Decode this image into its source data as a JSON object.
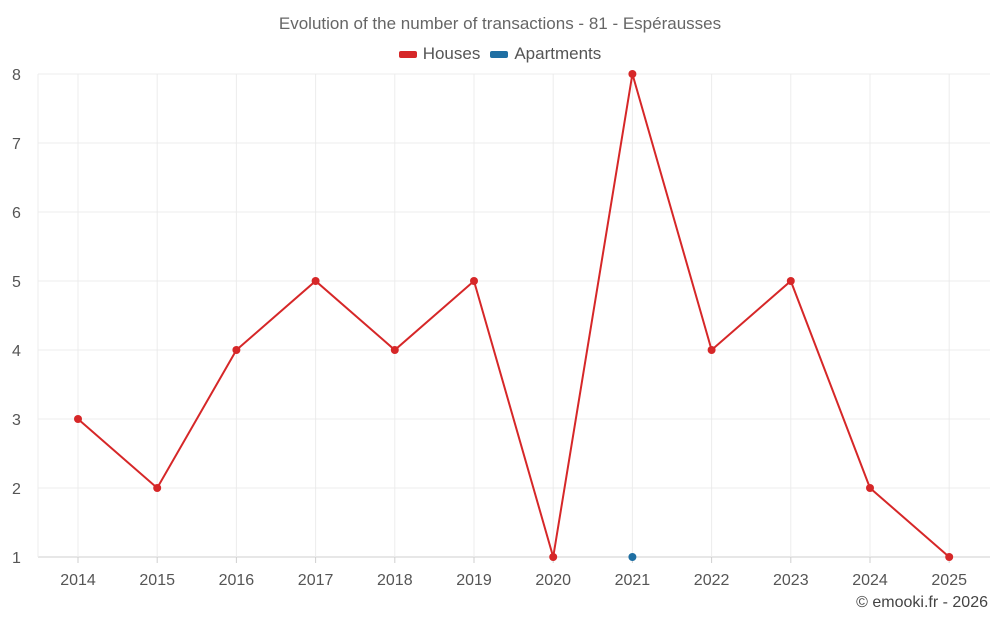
{
  "chart_data": {
    "type": "line",
    "title": "Evolution of the number of transactions - 81 - Espérausses",
    "categories": [
      "2014",
      "2015",
      "2016",
      "2017",
      "2018",
      "2019",
      "2020",
      "2021",
      "2022",
      "2023",
      "2024",
      "2025"
    ],
    "series": [
      {
        "name": "Houses",
        "color": "#d62728",
        "values": [
          3,
          2,
          4,
          5,
          4,
          5,
          1,
          8,
          4,
          5,
          2,
          1
        ]
      },
      {
        "name": "Apartments",
        "color": "#1f6fa3",
        "values": [
          null,
          null,
          null,
          null,
          null,
          null,
          null,
          1,
          null,
          null,
          null,
          null
        ]
      }
    ],
    "yticks": [
      "1",
      "2",
      "3",
      "4",
      "5",
      "6",
      "7",
      "8"
    ],
    "ylim": [
      1,
      8
    ],
    "grid": true,
    "legend_position": "top-center",
    "xlabel": "",
    "ylabel": ""
  },
  "footer": {
    "watermark": "© emooki.fr - 2026"
  }
}
